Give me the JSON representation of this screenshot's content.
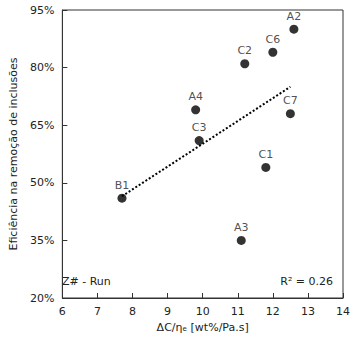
{
  "chart_data": {
    "type": "scatter",
    "x_label": "ΔC/ηₑ [wt%/Pa.s]",
    "y_label": "Eficiência na remoção de inclusões",
    "xlim": [
      6,
      14
    ],
    "xticks": [
      6,
      7,
      8,
      9,
      10,
      11,
      12,
      13,
      14
    ],
    "ylim": [
      20,
      95
    ],
    "yticks": [
      {
        "value": 20,
        "label": "20%"
      },
      {
        "value": 35,
        "label": "35%"
      },
      {
        "value": 50,
        "label": "50%"
      },
      {
        "value": 65,
        "label": "65%"
      },
      {
        "value": 80,
        "label": "80%"
      },
      {
        "value": 95,
        "label": "95%"
      }
    ],
    "grid": false,
    "annotations": [
      "Z# - Run",
      "R² = 0.26"
    ],
    "series": [
      {
        "type": "scatter",
        "marker": "circle",
        "color": "#000000",
        "x": [
          7.7,
          9.8,
          9.9,
          11.2,
          12.0,
          12.6,
          12.5,
          11.8,
          11.1
        ],
        "values": [
          46,
          69,
          61,
          81,
          84,
          90,
          68,
          54,
          35
        ],
        "point_labels": [
          "B1",
          "A4",
          "C3",
          "C2",
          "C6",
          "A2",
          "C7",
          "C1",
          "A3"
        ]
      },
      {
        "type": "line",
        "line_style": "dotted",
        "color": "#000000",
        "x": [
          7.7,
          12.5
        ],
        "values": [
          46.5,
          75
        ]
      }
    ]
  }
}
